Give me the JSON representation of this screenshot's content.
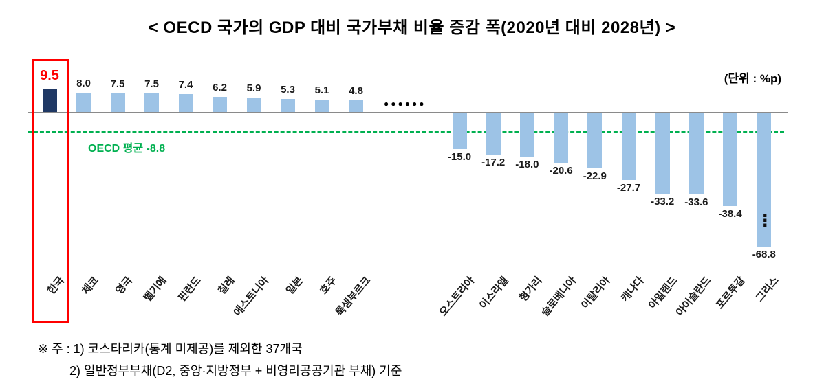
{
  "title": "< OECD 국가의 GDP 대비 국가부채 비율 증감 폭(2020년 대비 2028년) >",
  "unit_label": "(단위 : %p)",
  "average_label": "OECD 평균 -8.8",
  "omitted_countries_ellipsis": "●●●●●●",
  "axis_break_marker": "⋮",
  "footnotes": [
    "※ 주 : 1) 코스타리카(통계 미제공)를 제외한 37개국",
    "2) 일반정부부채(D2, 중앙·지방정부 + 비영리공공기관 부채) 기준"
  ],
  "chart_data": {
    "type": "bar",
    "title": "OECD 국가의 GDP 대비 국가부채 비율 증감 폭(2020년 대비 2028년)",
    "unit": "%p",
    "categories": [
      "한국",
      "체코",
      "영국",
      "벨기에",
      "핀란드",
      "칠레",
      "에스토니아",
      "일본",
      "호주",
      "룩셈부르크",
      "오스트리아",
      "이스라엘",
      "헝가리",
      "슬로베니아",
      "이탈리아",
      "캐나다",
      "아일랜드",
      "아이슬란드",
      "포르투갈",
      "그리스"
    ],
    "values": [
      9.5,
      8.0,
      7.5,
      7.5,
      7.4,
      6.2,
      5.9,
      5.3,
      5.1,
      4.8,
      -15.0,
      -17.2,
      -18.0,
      -20.6,
      -22.9,
      -27.7,
      -33.2,
      -33.6,
      -38.4,
      -68.8
    ],
    "highlight_index": 0,
    "highlight_category": "한국",
    "gap_after_index": 9,
    "truncated_index": 19,
    "oecd_average": -8.8,
    "legend_position": "none",
    "grid": false,
    "colors": {
      "bar": "#9DC3E6",
      "highlight": "#1F3864",
      "average": "#00B050",
      "red": "#FF0000"
    }
  }
}
